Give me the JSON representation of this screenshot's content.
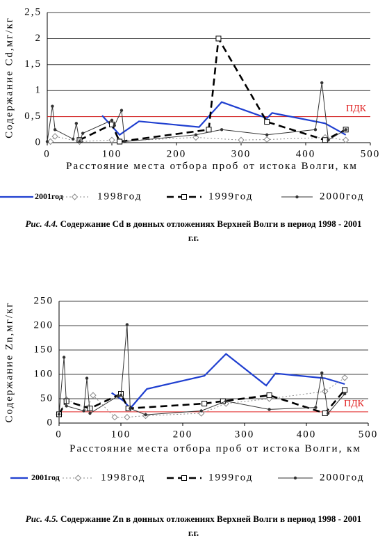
{
  "chart_data": [
    {
      "type": "line",
      "y_label": "Содержание Cd,мг/кг",
      "x_label": "Расстояние места отбора проб от истока Волги, км",
      "caption_label": "Рис. 4.4.",
      "caption": "Содержание Cd в донных отложениях Верхней Волги в период 1998 - 2001 г.г.",
      "xlim": [
        0,
        500
      ],
      "xticks": [
        0,
        100,
        200,
        300,
        400,
        500
      ],
      "ylim": [
        0,
        2.5
      ],
      "yticks": [
        0,
        {
          "value": 0.5,
          "label": "0,5"
        },
        1,
        {
          "value": 1.5,
          "label": "1,5"
        },
        2,
        {
          "value": 2.5,
          "label": "2,5"
        }
      ],
      "grid": true,
      "reference_line": {
        "value": 0.5,
        "label": "ПДК",
        "color": "#e02020"
      },
      "series": [
        {
          "name": "2001год",
          "color": "#1f3fd0",
          "line_style": "solid",
          "marker": "none",
          "x": [
            85,
            112,
            142,
            235,
            270,
            340,
            348,
            430,
            462
          ],
          "values": [
            0.52,
            0.15,
            0.41,
            0.3,
            0.78,
            0.47,
            0.57,
            0.37,
            0.15
          ]
        },
        {
          "name": "1998год",
          "color": "#8a8a8a",
          "line_style": "dotted",
          "marker": "diamond",
          "x": [
            5,
            12,
            50,
            100,
            112,
            230,
            300,
            340,
            430,
            462
          ],
          "values": [
            0.02,
            0.12,
            0.02,
            0.05,
            0.03,
            0.1,
            0.05,
            0.06,
            0.1,
            0.05
          ]
        },
        {
          "name": "1999год",
          "color": "#000000",
          "line_style": "dashed",
          "marker": "square",
          "x": [
            50,
            100,
            112,
            250,
            265,
            340,
            430,
            462
          ],
          "values": [
            0.05,
            0.35,
            0.02,
            0.25,
            2.0,
            0.4,
            0.05,
            0.25
          ]
        },
        {
          "name": "2000год",
          "color": "#333333",
          "line_style": "solid",
          "marker": "dot",
          "x": [
            0,
            8,
            12,
            40,
            45,
            50,
            55,
            100,
            104,
            115,
            120,
            230,
            270,
            340,
            415,
            425,
            435,
            462
          ],
          "values": [
            0.02,
            0.7,
            0.25,
            0.07,
            0.37,
            0.02,
            0.18,
            0.43,
            0.33,
            0.62,
            0.02,
            0.15,
            0.25,
            0.15,
            0.25,
            1.15,
            0.05,
            0.25
          ]
        }
      ]
    },
    {
      "type": "line",
      "y_label": "Содержание Zn,мг/кг",
      "x_label": "Расстояние места отбора проб от истока Волги, км",
      "caption_label": "Рис. 4.5.",
      "caption": "Содержание Zn в донных отложениях Верхней Волги в период 1998 - 2001 г.г.",
      "xlim": [
        0,
        500
      ],
      "xticks": [
        0,
        100,
        200,
        300,
        400,
        500
      ],
      "ylim": [
        0,
        250
      ],
      "yticks": [
        0,
        50,
        100,
        150,
        200,
        250
      ],
      "grid": true,
      "reference_line": {
        "value": 23,
        "label": "ПДК",
        "color": "#e02020"
      },
      "series": [
        {
          "name": "2001год",
          "color": "#1f3fd0",
          "line_style": "solid",
          "marker": "none",
          "x": [
            85,
            105,
            115,
            142,
            235,
            270,
            335,
            350,
            430,
            462
          ],
          "values": [
            62,
            45,
            30,
            70,
            97,
            142,
            77,
            102,
            92,
            80
          ]
        },
        {
          "name": "1998год",
          "color": "#8a8a8a",
          "line_style": "dotted",
          "marker": "diamond",
          "x": [
            0,
            12,
            45,
            55,
            90,
            110,
            140,
            230,
            270,
            340,
            430,
            462
          ],
          "values": [
            18,
            48,
            30,
            57,
            12,
            12,
            15,
            20,
            40,
            50,
            65,
            93
          ]
        },
        {
          "name": "1999год",
          "color": "#000000",
          "line_style": "dashed",
          "marker": "square",
          "x": [
            0,
            12,
            50,
            100,
            112,
            235,
            265,
            340,
            430,
            462
          ],
          "values": [
            18,
            45,
            30,
            60,
            30,
            40,
            45,
            57,
            20,
            68
          ]
        },
        {
          "name": "2000год",
          "color": "#333333",
          "line_style": "solid",
          "marker": "dot",
          "x": [
            0,
            8,
            12,
            40,
            45,
            50,
            95,
            100,
            110,
            115,
            140,
            230,
            270,
            340,
            415,
            425,
            435,
            462
          ],
          "values": [
            18,
            135,
            35,
            25,
            92,
            20,
            55,
            57,
            202,
            30,
            17,
            25,
            45,
            28,
            32,
            103,
            20,
            60
          ]
        }
      ]
    }
  ]
}
